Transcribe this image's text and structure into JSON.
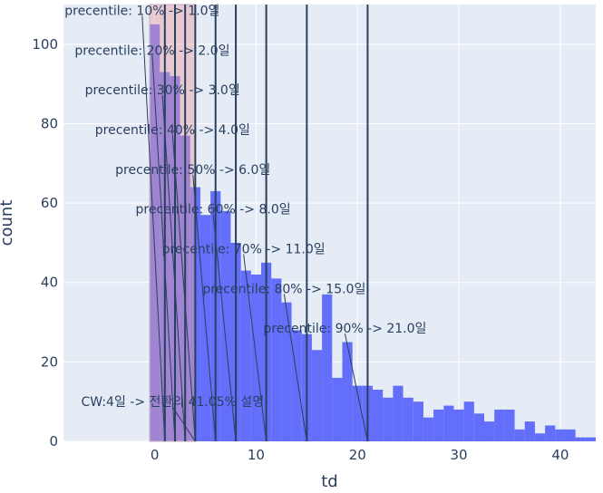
{
  "chart_data": {
    "type": "bar",
    "title": "",
    "xlabel": "td",
    "ylabel": "count",
    "xlim": [
      -9,
      43.5
    ],
    "ylim": [
      0,
      110
    ],
    "bin_width": 1,
    "bins_start": [
      0,
      1,
      2,
      3,
      4,
      5,
      6,
      7,
      8,
      9,
      10,
      11,
      12,
      13,
      14,
      15,
      16,
      17,
      18,
      19,
      20,
      21,
      22,
      23,
      24,
      25,
      26,
      27,
      28,
      29,
      30,
      31,
      32,
      33,
      34,
      35,
      36,
      37,
      38,
      39,
      40,
      41,
      42,
      43
    ],
    "values": [
      105,
      93,
      92,
      77,
      64,
      57,
      63,
      58,
      50,
      43,
      42,
      45,
      41,
      35,
      28,
      27,
      23,
      37,
      16,
      25,
      14,
      14,
      13,
      11,
      14,
      11,
      10,
      6,
      8,
      9,
      8,
      10,
      7,
      5,
      8,
      8,
      3,
      5,
      2,
      4,
      3,
      3,
      1,
      1
    ],
    "shaded_region": {
      "x0": -0.5,
      "x1": 4,
      "color": "#e8a0a0"
    },
    "x_ticks": [
      0,
      10,
      20,
      30,
      40
    ],
    "y_ticks": [
      0,
      20,
      40,
      60,
      80,
      100
    ],
    "vlines": [
      1,
      2,
      3,
      4,
      6,
      8,
      11,
      15,
      21
    ],
    "annotations": [
      {
        "text": "precentile: 10% -> 1.0일",
        "x": 1,
        "label_y": 108.5
      },
      {
        "text": "precentile: 20% -> 2.0일",
        "x": 2,
        "label_y": 98.5
      },
      {
        "text": "precentile: 30% -> 3.0일",
        "x": 3,
        "label_y": 88.5
      },
      {
        "text": "precentile: 40% -> 4.0일",
        "x": 4,
        "label_y": 78.5
      },
      {
        "text": "precentile: 50% -> 6.0일",
        "x": 6,
        "label_y": 68.5
      },
      {
        "text": "precentile: 60% -> 8.0일",
        "x": 8,
        "label_y": 58.5
      },
      {
        "text": "precentile: 70% -> 11.0일",
        "x": 11,
        "label_y": 48.5
      },
      {
        "text": "precentile: 80% -> 15.0일",
        "x": 15,
        "label_y": 38.5
      },
      {
        "text": "precentile: 90% -> 21.0일",
        "x": 21,
        "label_y": 28.5
      },
      {
        "text": "CW:4일 -> 전환의 41.05% 설명",
        "x": 4,
        "label_y": 10
      }
    ],
    "colors": {
      "plot_bg": "#e5ecf6",
      "grid": "#ffffff",
      "bar": "#636efa",
      "vline": "#2a3f5f",
      "text": "#2a3f5f"
    }
  }
}
